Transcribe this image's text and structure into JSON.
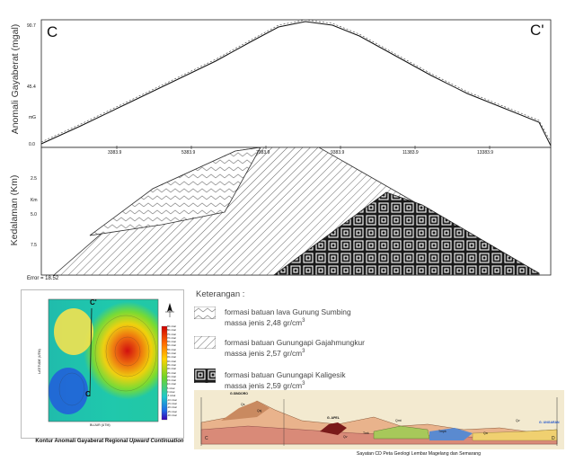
{
  "profile": {
    "label_left": "C",
    "label_right": "C'",
    "y_axis_label": "Anomali Gayaberat (mgal)",
    "depth_axis_label": "Kedalaman (Km)",
    "gravity_ticks": [
      "90.7",
      "45.4",
      "mG",
      "0.0"
    ],
    "x_ticks": [
      "3383.9",
      "5383.9",
      "7383.9",
      "9383.9",
      "11383.9",
      "13383.9"
    ],
    "depth_ticks": [
      "2.5",
      "Km",
      "5.0",
      "7.5"
    ],
    "error_label": "Error = 18.52"
  },
  "legend": {
    "title": "Keterangan :",
    "items": [
      {
        "line1": "formasi batuan lava Gunung Sumbing",
        "line2": "massa jenis 2,48 gr/cm",
        "sup": "3"
      },
      {
        "line1": "formasi batuan Gunungapi Gajahmungkur",
        "line2": "massa jenis 2,57 gr/cm",
        "sup": "3"
      },
      {
        "line1": "formasi batuan Gunungapi Kaligesik",
        "line2": "massa jenis 2,59 gr/cm",
        "sup": "3"
      }
    ]
  },
  "contour_map": {
    "caption_pre": "Kontur Anomali Gayaberat Regional ",
    "caption_em": "Upward Continuation",
    "point_c": "C",
    "point_c_prime": "C'",
    "y_axis": "LATITUDE (UTM)",
    "x_axis": "BUJUR (UTM)",
    "scale_labels": [
      "85 mGal",
      "80 mGal",
      "75 mGal",
      "70 mGal",
      "65 mGal",
      "60 mGal",
      "55 mGal",
      "50 mGal",
      "45 mGal",
      "40 mGal",
      "35 mGal",
      "30 mGal",
      "25 mGal",
      "20 mGal",
      "15 mGal",
      "10 mGal",
      "5 mGal",
      "0 mGal",
      "-5 mGal",
      "-10 mGal",
      "-15 mGal",
      "-20 mGal",
      "-25 mGal",
      "-30 mGal"
    ]
  },
  "geology_section": {
    "caption": "Sayatan CD Peta Geologi Lembar Magelang dan Semarang",
    "end_left": "C",
    "end_right": "D",
    "peak_labels": [
      "G.SINDORO",
      "G. APEL",
      "G. UNGARAN"
    ],
    "unit_labels": [
      "Qs",
      "Qsj",
      "Tmk",
      "Qv",
      "Qmt",
      "Tmpk",
      "Qa",
      "Qv"
    ]
  },
  "colors": {
    "gravity_curve": "#111111",
    "sumbing_fill": "#ffffff",
    "gajah_fill": "#ffffff",
    "kaligesik_fill": "#222222"
  }
}
